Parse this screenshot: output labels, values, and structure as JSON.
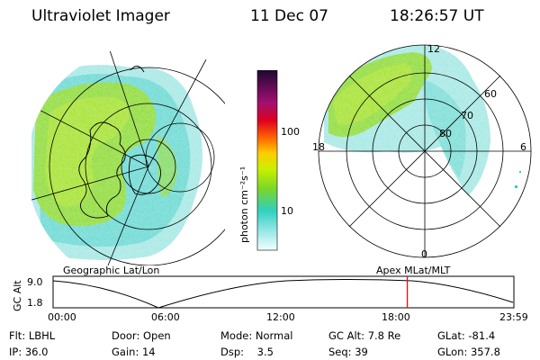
{
  "header": {
    "instrument": "Ultraviolet Imager",
    "date": "11 Dec 07",
    "time": "18:26:57 UT"
  },
  "colorbar": {
    "label": "photon cm⁻²s⁻¹",
    "ticks": [
      "100",
      "10"
    ]
  },
  "left_panel": {
    "caption": "Geographic Lat/Lon"
  },
  "right_panel": {
    "caption": "Apex MLat/MLT",
    "mlt_labels": {
      "top": "12",
      "left": "18",
      "right": "6",
      "bottom": "0"
    },
    "lat_labels": [
      "60",
      "70",
      "80"
    ]
  },
  "altitude_plot": {
    "axis_label": "GC Alt",
    "y_ticks": [
      "9.0",
      "1.8"
    ],
    "x_ticks": [
      "00:00",
      "06:00",
      "12:00",
      "18:00",
      "23:59"
    ],
    "current_time_fraction": 0.7687
  },
  "status": {
    "filter": {
      "label": "Flt:",
      "value": "LBHL"
    },
    "ip": {
      "label": "IP:",
      "value": "36.0"
    },
    "door": {
      "label": "Door:",
      "value": "Open"
    },
    "gain": {
      "label": "Gain:",
      "value": "14"
    },
    "mode": {
      "label": "Mode:",
      "value": "Normal"
    },
    "dsp": {
      "label": "Dsp:",
      "value": "3.5"
    },
    "gc_alt": {
      "label": "GC Alt:",
      "value": "7.8 Re"
    },
    "seq": {
      "label": "Seq:",
      "value": "39"
    },
    "glat": {
      "label": "GLat:",
      "value": "-81.4"
    },
    "glon": {
      "label": "GLon:",
      "value": "357.8"
    }
  },
  "colors": {
    "aurora_green": "#86d92a",
    "aurora_cyan": "#6fe0d8",
    "marker_red": "#e01010"
  }
}
